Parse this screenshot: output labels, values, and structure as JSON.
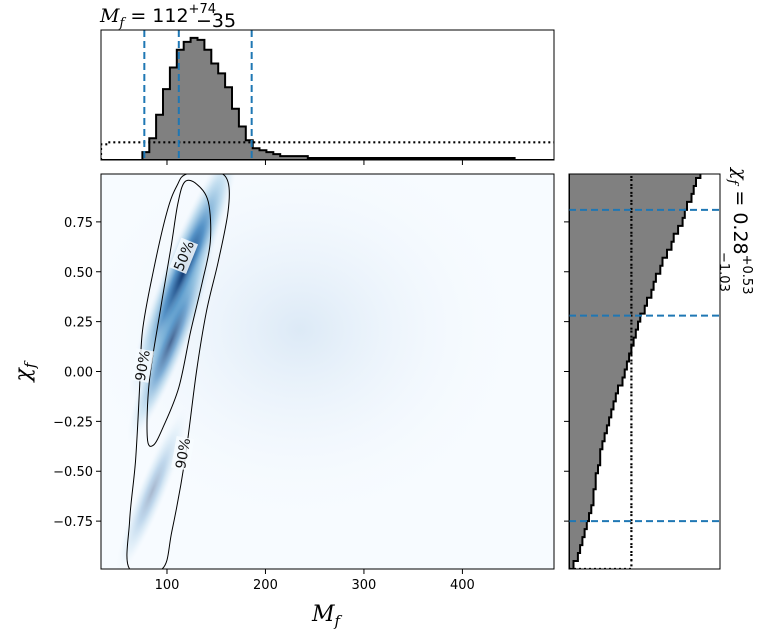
{
  "chart_data": {
    "type": "corner",
    "colors": {
      "histogram_fill": "#808080",
      "median_line": "#1f77b4",
      "density": "#08519c",
      "contour": "#000000"
    },
    "top_title": {
      "symbol": "M",
      "subscript": "f",
      "equals": " = ",
      "median": "112",
      "upper": "+74",
      "lower": "−35"
    },
    "right_title": {
      "symbol": "χ",
      "subscript": "f",
      "equals": " = ",
      "median": "0.28",
      "upper": "+0.53",
      "lower": "−1.03"
    },
    "main": {
      "xlabel_symbol": "M",
      "xlabel_subscript": "f",
      "ylabel_symbol": "χ",
      "ylabel_subscript": "f",
      "xlim": [
        33,
        493
      ],
      "ylim": [
        -0.99,
        0.99
      ],
      "xticks": [
        100,
        200,
        300,
        400
      ],
      "yticks": [
        0.75,
        0.5,
        0.25,
        0.0,
        -0.25,
        -0.5,
        -0.75
      ],
      "xtick_labels": [
        "100",
        "200",
        "300",
        "400"
      ],
      "ytick_labels": [
        "0.75",
        "0.50",
        "0.25",
        "0.00",
        "−0.25",
        "−0.50",
        "−0.75"
      ],
      "contour_labels": [
        {
          "text": "50%",
          "x": 117,
          "y": 0.58,
          "angle": -68
        },
        {
          "text": "90%",
          "x": 75,
          "y": 0.03,
          "angle": -80
        },
        {
          "text": "90%",
          "x": 116,
          "y": -0.41,
          "angle": -80
        }
      ],
      "contour_50": [
        [
          118,
          0.95
        ],
        [
          130,
          0.94
        ],
        [
          142,
          0.85
        ],
        [
          144,
          0.65
        ],
        [
          136,
          0.45
        ],
        [
          124,
          0.2
        ],
        [
          112,
          -0.08
        ],
        [
          96,
          -0.28
        ],
        [
          86,
          -0.37
        ],
        [
          80,
          -0.33
        ],
        [
          82,
          -0.05
        ],
        [
          93,
          0.3
        ],
        [
          104,
          0.62
        ],
        [
          111,
          0.84
        ]
      ],
      "contour_90": [
        [
          120,
          0.99
        ],
        [
          150,
          1.0
        ],
        [
          162,
          0.95
        ],
        [
          162,
          0.8
        ],
        [
          152,
          0.55
        ],
        [
          140,
          0.3
        ],
        [
          130,
          0.0
        ],
        [
          118,
          -0.45
        ],
        [
          105,
          -0.8
        ],
        [
          95,
          -0.99
        ],
        [
          62,
          -0.99
        ],
        [
          62,
          -0.75
        ],
        [
          68,
          -0.45
        ],
        [
          72,
          -0.1
        ],
        [
          75,
          0.2
        ],
        [
          86,
          0.5
        ],
        [
          100,
          0.8
        ],
        [
          110,
          0.93
        ]
      ],
      "density_peak": {
        "x": 117,
        "y": 0.5
      }
    },
    "top_hist": {
      "xlim": [
        33,
        493
      ],
      "bin_width": 7,
      "bin_start": 33,
      "posterior_counts": [
        0,
        0,
        0,
        0,
        0,
        0,
        4,
        11,
        23,
        36,
        47,
        56,
        60,
        62,
        61,
        56,
        49,
        44,
        37,
        26,
        17,
        10,
        6,
        5,
        4,
        3,
        2,
        2,
        2,
        2,
        1,
        1,
        1,
        1,
        1,
        1,
        1,
        1,
        1,
        1,
        1,
        1,
        1,
        1,
        1,
        1,
        1,
        1,
        1,
        1,
        1,
        1,
        1,
        1,
        1,
        1,
        1,
        1,
        1,
        1,
        0,
        0,
        0,
        0,
        0,
        0
      ],
      "prior_counts": [
        8,
        9,
        9,
        9,
        9,
        9,
        9,
        9,
        9,
        9,
        9,
        9,
        9,
        9,
        9,
        9,
        9,
        9,
        9,
        9,
        9,
        9,
        9,
        9,
        9,
        9,
        9,
        9,
        9,
        9,
        9,
        9,
        9,
        9,
        9,
        9,
        9,
        9,
        9,
        9,
        9,
        9,
        9,
        9,
        9,
        9,
        9,
        9,
        9,
        9,
        9,
        9,
        9,
        9,
        9,
        9,
        9,
        9,
        9,
        9,
        9,
        9,
        9,
        9,
        9,
        9
      ],
      "ymax": 64,
      "quantiles": [
        77,
        112,
        186
      ]
    },
    "right_hist": {
      "ylim": [
        -0.99,
        0.99
      ],
      "bin_width": 0.04,
      "bin_start": -0.99,
      "posterior_counts": [
        2,
        4,
        5,
        6,
        7,
        8,
        9,
        10,
        11,
        11,
        12,
        12,
        13,
        14,
        14,
        15,
        16,
        17,
        18,
        19,
        20,
        21,
        22,
        24,
        25,
        26,
        27,
        28,
        29,
        30,
        31,
        32,
        34,
        35,
        37,
        38,
        39,
        41,
        42,
        44,
        46,
        47,
        49,
        51,
        52,
        53,
        55,
        56,
        57,
        59,
        60,
        61,
        62,
        63,
        64,
        64,
        64,
        62,
        58,
        52,
        40,
        18,
        8,
        5,
        3,
        3
      ],
      "prior_counts": [
        28,
        28,
        28,
        28,
        28,
        28,
        28,
        28,
        28,
        28,
        28,
        28,
        28,
        28,
        28,
        28,
        28,
        28,
        28,
        28,
        28,
        28,
        28,
        28,
        28,
        28,
        28,
        28,
        28,
        28,
        28,
        28,
        28,
        28,
        28,
        28,
        28,
        28,
        28,
        28,
        28,
        28,
        28,
        28,
        28,
        28,
        28,
        28,
        28,
        28,
        28,
        28,
        28,
        28,
        28,
        28,
        28,
        28,
        28,
        28,
        28,
        28,
        28,
        28,
        28,
        28
      ],
      "xmax": 66,
      "quantiles": [
        -0.75,
        0.28,
        0.81
      ]
    }
  }
}
